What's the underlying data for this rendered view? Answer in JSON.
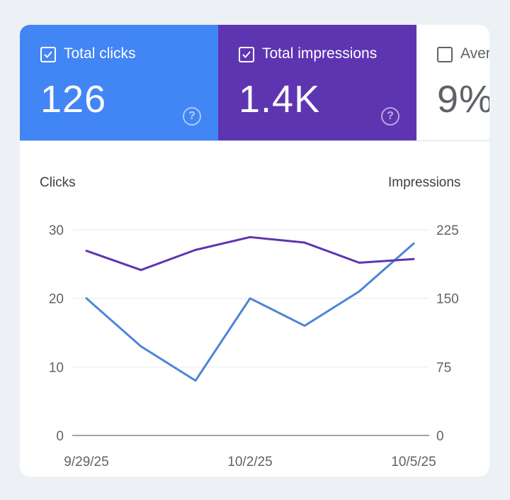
{
  "metrics": {
    "clicks": {
      "label": "Total clicks",
      "value": "126",
      "checked": true,
      "color": "#4285f4",
      "help_icon": "help-circle-icon"
    },
    "impressions": {
      "label": "Total impressions",
      "value": "1.4K",
      "checked": true,
      "color": "#5e35b1",
      "help_icon": "help-circle-icon"
    },
    "ctr": {
      "label": "Aver",
      "value": "9%",
      "checked": false
    }
  },
  "chart_data": {
    "type": "line",
    "x": [
      "9/29/25",
      "9/30/25",
      "10/1/25",
      "10/2/25",
      "10/3/25",
      "10/4/25",
      "10/5/25"
    ],
    "x_tick_labels": [
      "9/29/25",
      "10/2/25",
      "10/5/25"
    ],
    "left_axis": {
      "label": "Clicks",
      "ticks": [
        "0",
        "10",
        "20",
        "30"
      ],
      "ylim": [
        0,
        30
      ]
    },
    "right_axis": {
      "label": "Impressions",
      "ticks": [
        "0",
        "75",
        "150",
        "225"
      ],
      "ylim": [
        0,
        225
      ]
    },
    "series": [
      {
        "name": "Clicks",
        "axis": "left",
        "color": "#4a86d6",
        "values": [
          20,
          13,
          8,
          20,
          16,
          21,
          28
        ]
      },
      {
        "name": "Impressions",
        "axis": "right",
        "color": "#5e35b1",
        "values": [
          202,
          181,
          203,
          217,
          211,
          189,
          193
        ]
      }
    ],
    "grid": true
  }
}
